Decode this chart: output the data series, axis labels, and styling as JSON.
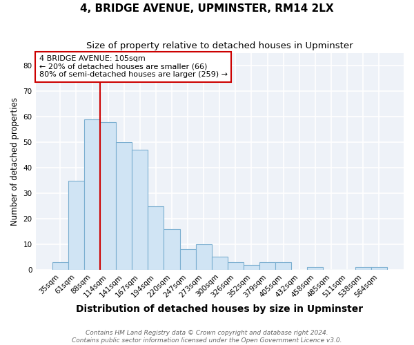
{
  "title": "4, BRIDGE AVENUE, UPMINSTER, RM14 2LX",
  "subtitle": "Size of property relative to detached houses in Upminster",
  "xlabel": "Distribution of detached houses by size in Upminster",
  "ylabel": "Number of detached properties",
  "categories": [
    "35sqm",
    "61sqm",
    "88sqm",
    "114sqm",
    "141sqm",
    "167sqm",
    "194sqm",
    "220sqm",
    "247sqm",
    "273sqm",
    "300sqm",
    "326sqm",
    "352sqm",
    "379sqm",
    "405sqm",
    "432sqm",
    "458sqm",
    "485sqm",
    "511sqm",
    "538sqm",
    "564sqm"
  ],
  "values": [
    3,
    35,
    59,
    58,
    50,
    47,
    25,
    16,
    8,
    10,
    5,
    3,
    2,
    3,
    3,
    0,
    1,
    0,
    0,
    1,
    1
  ],
  "bar_color": "#d0e4f4",
  "bar_edge_color": "#7aaed0",
  "bar_linewidth": 0.8,
  "red_line_color": "#cc0000",
  "annotation_text": "4 BRIDGE AVENUE: 105sqm\n← 20% of detached houses are smaller (66)\n80% of semi-detached houses are larger (259) →",
  "annotation_box_color": "#ffffff",
  "annotation_box_edge_color": "#cc0000",
  "footer_line1": "Contains HM Land Registry data © Crown copyright and database right 2024.",
  "footer_line2": "Contains public sector information licensed under the Open Government Licence v3.0.",
  "ylim": [
    0,
    85
  ],
  "yticks": [
    0,
    10,
    20,
    30,
    40,
    50,
    60,
    70,
    80
  ],
  "background_color": "#eef2f8",
  "grid_color": "#ffffff",
  "title_fontsize": 11,
  "subtitle_fontsize": 9.5,
  "xlabel_fontsize": 10,
  "ylabel_fontsize": 8.5,
  "tick_fontsize": 7.5,
  "annotation_fontsize": 8,
  "footer_fontsize": 6.5
}
